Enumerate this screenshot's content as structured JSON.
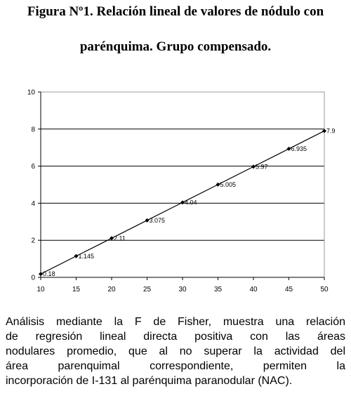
{
  "title_line1": "Figura Nº1. Relación lineal de valores de nódulo con",
  "title_line2": "parénquima. Grupo compensado.",
  "caption_lines": [
    "Análisis mediante la F de Fisher, muestra una relación",
    "de regresión lineal directa positiva con las áreas",
    "nodulares promedio, que al no superar la actividad del",
    "área parenquimal correspondiente, permiten la",
    "incorporación de I-131 al parénquima paranodular (NAC)."
  ],
  "chart_data": {
    "type": "line",
    "x": [
      10,
      15,
      20,
      25,
      30,
      35,
      40,
      45,
      50
    ],
    "series": [
      {
        "values": [
          0.18,
          1.145,
          2.11,
          3.075,
          4.04,
          5.005,
          5.97,
          6.935,
          7.9
        ],
        "labels": [
          "0.18",
          "1.145",
          "2.11",
          "3.075",
          "4.04",
          "5.005",
          "5.97",
          "6.935",
          "7.9"
        ]
      }
    ],
    "xticks": [
      "10",
      "15",
      "20",
      "25",
      "30",
      "35",
      "40",
      "45",
      "50"
    ],
    "yticks": [
      "0",
      "2",
      "4",
      "6",
      "8",
      "10"
    ],
    "xlim": [
      10,
      50
    ],
    "ylim": [
      0,
      10
    ],
    "grid": "horizontal",
    "marker": "diamond",
    "colors": {
      "line": "#000000",
      "grid": "#000000",
      "frame": "#999999"
    }
  }
}
